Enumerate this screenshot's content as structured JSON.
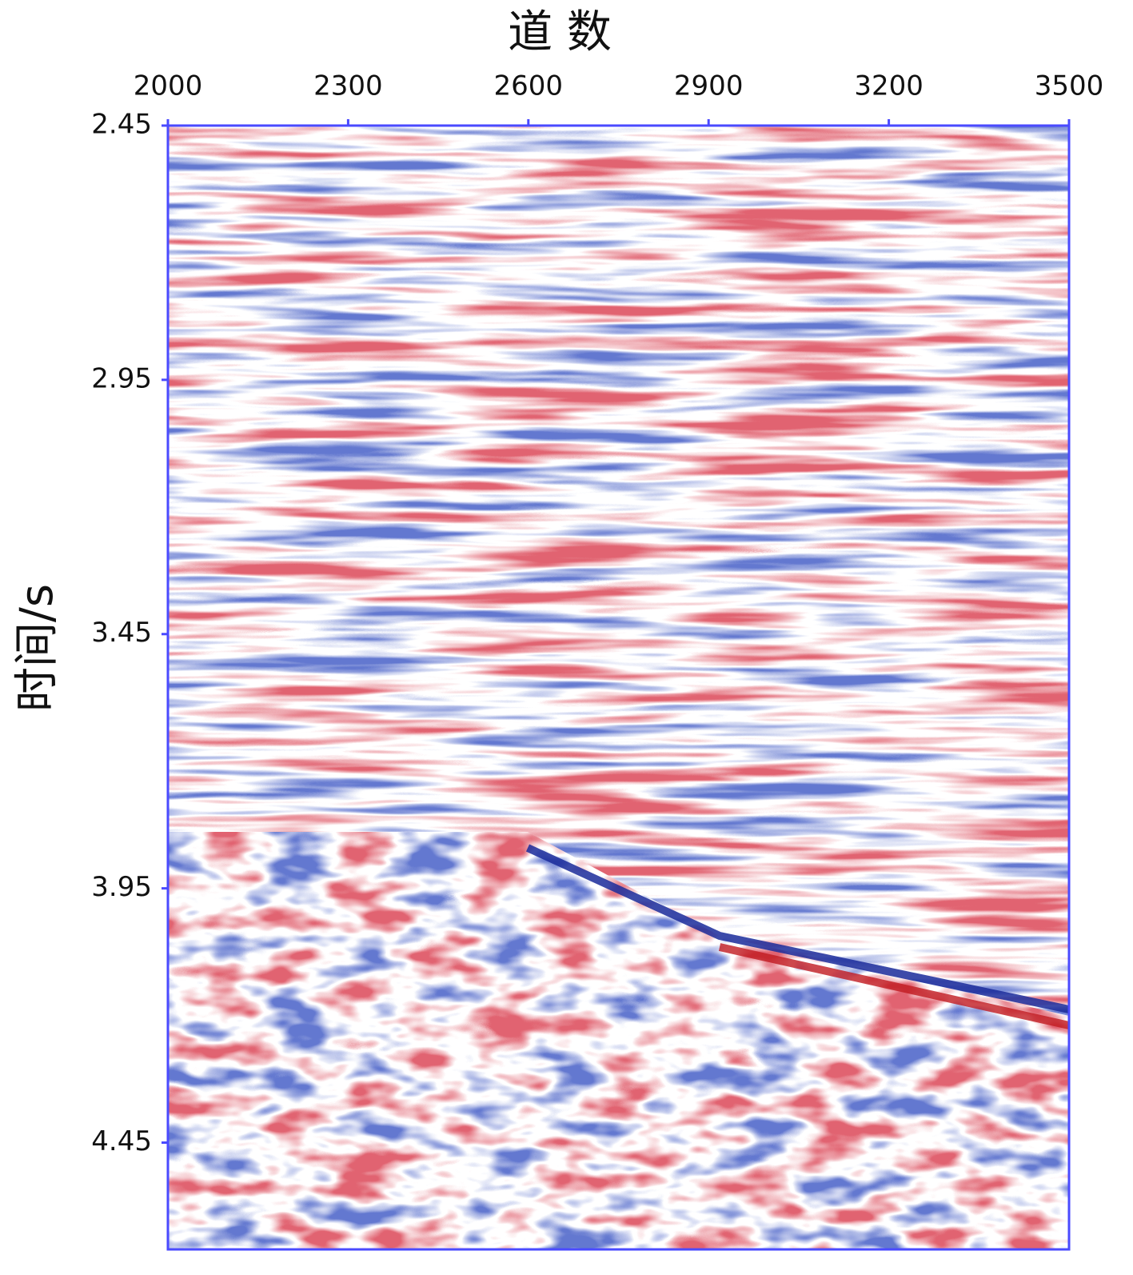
{
  "chart_data": {
    "type": "seismic-section",
    "xlabel": "道 数",
    "ylabel": "时间/s",
    "xlim": [
      2000,
      3500
    ],
    "xticks": [
      2000,
      2300,
      2600,
      2900,
      3200,
      3500
    ],
    "ylim": [
      2.45,
      4.66
    ],
    "yticks": [
      2.45,
      2.95,
      3.45,
      3.95,
      4.45
    ],
    "x_axis_position": "top",
    "y_inverted": true,
    "axis_color": "#4a4aff",
    "colormap": [
      "#c0202a",
      "#ffffff",
      "#2030a0"
    ]
  }
}
